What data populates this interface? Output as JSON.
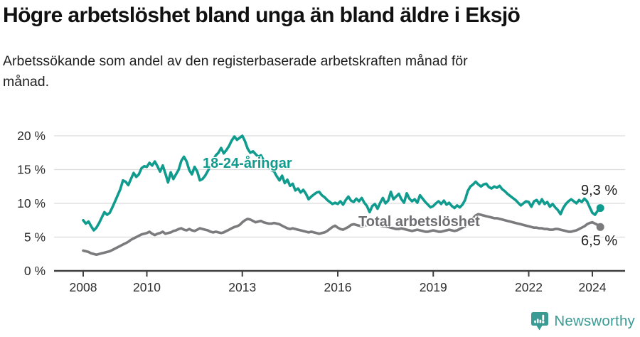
{
  "header": {
    "title": "Högre arbetslöshet bland unga än bland äldre i Eksjö",
    "subtitle": "Arbetssökande som andel av den registerbaserade arbetskraften månad för månad."
  },
  "chart_data": {
    "type": "line",
    "title": "Högre arbetslöshet bland unga än bland äldre i Eksjö",
    "subtitle": "Arbetssökande som andel av den registerbaserade arbetskraften månad för månad.",
    "unit": "%",
    "grid": true,
    "x_start_year": 2008,
    "x_frequency": "monthly",
    "x_axis": {
      "ticks": [
        {
          "year": 2008,
          "label": "2008"
        },
        {
          "year": 2010,
          "label": "2010"
        },
        {
          "year": 2013,
          "label": "2013"
        },
        {
          "year": 2016,
          "label": "2016"
        },
        {
          "year": 2019,
          "label": "2019"
        },
        {
          "year": 2022,
          "label": "2022"
        },
        {
          "year": 2024,
          "label": "2024"
        }
      ]
    },
    "y_axis": {
      "min": 0,
      "max": 20,
      "ticks": [
        {
          "value": 0,
          "label": "0 %"
        },
        {
          "value": 5,
          "label": "5 %"
        },
        {
          "value": 10,
          "label": "10 %"
        },
        {
          "value": 15,
          "label": "15 %"
        },
        {
          "value": 20,
          "label": "20 %"
        }
      ]
    },
    "series": [
      {
        "id": "young",
        "name": "18-24-åringar",
        "color": "#0f9b8e",
        "end_value": 9.3,
        "end_label": "9,3 %",
        "values": [
          7.5,
          7.0,
          7.3,
          6.6,
          6.0,
          6.4,
          7.1,
          7.9,
          8.7,
          8.3,
          8.6,
          9.4,
          10.3,
          11.2,
          12.1,
          13.4,
          13.2,
          12.7,
          13.6,
          14.5,
          13.9,
          14.3,
          15.2,
          15.5,
          15.4,
          16.0,
          15.6,
          16.2,
          15.5,
          14.7,
          15.6,
          14.4,
          13.1,
          14.6,
          13.6,
          14.3,
          15.0,
          16.3,
          16.9,
          16.2,
          14.9,
          14.3,
          15.4,
          14.7,
          13.4,
          13.6,
          14.1,
          14.8,
          15.6,
          16.4,
          17.1,
          17.5,
          18.2,
          17.4,
          17.9,
          18.5,
          19.3,
          19.9,
          19.4,
          19.7,
          20.0,
          19.2,
          18.1,
          17.5,
          17.7,
          17.3,
          16.9,
          17.1,
          16.4,
          15.9,
          15.4,
          14.9,
          14.7,
          14.0,
          13.4,
          14.1,
          13.0,
          13.5,
          12.6,
          12.9,
          11.9,
          12.2,
          11.6,
          12.0,
          11.4,
          10.6,
          11.0,
          11.3,
          11.6,
          11.7,
          11.2,
          10.9,
          10.5,
          10.2,
          9.9,
          10.1,
          9.9,
          10.3,
          9.8,
          10.5,
          11.0,
          10.4,
          10.2,
          10.7,
          10.3,
          10.8,
          10.1,
          9.6,
          8.7,
          9.6,
          9.9,
          9.2,
          10.1,
          10.8,
          10.0,
          10.4,
          11.7,
          10.6,
          11.0,
          11.4,
          10.6,
          10.1,
          11.5,
          10.7,
          10.3,
          10.6,
          10.1,
          11.2,
          10.7,
          10.2,
          9.8,
          9.4,
          9.6,
          10.0,
          10.3,
          9.9,
          10.4,
          9.8,
          10.1,
          9.6,
          9.3,
          9.7,
          9.4,
          9.8,
          10.5,
          11.8,
          12.5,
          12.8,
          13.2,
          12.8,
          12.5,
          12.8,
          12.9,
          12.4,
          12.2,
          12.5,
          12.3,
          12.6,
          12.1,
          11.8,
          11.4,
          11.1,
          10.8,
          10.5,
          10.1,
          9.7,
          10.0,
          10.3,
          10.2,
          9.5,
          10.3,
          10.5,
          9.9,
          10.6,
          9.9,
          10.2,
          9.5,
          9.9,
          9.4,
          9.0,
          8.4,
          9.3,
          9.9,
          10.3,
          10.6,
          10.3,
          10.0,
          10.5,
          10.2,
          10.7,
          10.3,
          9.4,
          8.6,
          8.3,
          8.9,
          9.3
        ]
      },
      {
        "id": "total",
        "name": "Total arbetslöshet",
        "color": "#7b7b7e",
        "end_value": 6.5,
        "end_label": "6,5 %",
        "values": [
          3.0,
          2.9,
          2.8,
          2.6,
          2.5,
          2.4,
          2.5,
          2.6,
          2.7,
          2.8,
          2.9,
          3.1,
          3.3,
          3.5,
          3.7,
          3.9,
          4.1,
          4.3,
          4.6,
          4.8,
          5.0,
          5.2,
          5.4,
          5.5,
          5.6,
          5.8,
          5.5,
          5.3,
          5.5,
          5.6,
          5.8,
          5.5,
          5.6,
          5.7,
          5.9,
          6.0,
          6.2,
          6.3,
          6.1,
          6.0,
          6.2,
          6.0,
          5.9,
          6.1,
          6.3,
          6.2,
          6.1,
          6.0,
          5.8,
          5.7,
          5.8,
          5.7,
          5.6,
          5.7,
          5.9,
          6.1,
          6.3,
          6.5,
          6.6,
          6.8,
          7.2,
          7.5,
          7.7,
          7.6,
          7.4,
          7.2,
          7.3,
          7.4,
          7.2,
          7.1,
          7.0,
          7.0,
          7.1,
          7.0,
          6.9,
          6.7,
          6.5,
          6.3,
          6.2,
          6.3,
          6.2,
          6.1,
          6.0,
          5.9,
          5.8,
          5.7,
          5.8,
          5.7,
          5.6,
          5.5,
          5.6,
          5.7,
          5.9,
          6.2,
          6.5,
          6.7,
          6.4,
          6.2,
          6.1,
          6.3,
          6.5,
          6.8,
          6.9,
          6.8,
          6.7,
          6.6,
          6.7,
          6.8,
          6.9,
          7.0,
          6.9,
          6.8,
          6.7,
          6.6,
          6.6,
          6.5,
          6.4,
          6.3,
          6.2,
          6.2,
          6.3,
          6.2,
          6.1,
          6.0,
          5.9,
          6.0,
          6.1,
          6.0,
          5.9,
          5.8,
          5.8,
          5.9,
          6.0,
          5.9,
          5.8,
          5.8,
          5.9,
          6.0,
          6.1,
          6.0,
          5.9,
          6.0,
          6.2,
          6.4,
          6.6,
          6.8,
          7.2,
          7.8,
          8.2,
          8.4,
          8.3,
          8.2,
          8.1,
          8.0,
          7.9,
          7.8,
          7.8,
          7.7,
          7.6,
          7.5,
          7.4,
          7.3,
          7.2,
          7.1,
          7.0,
          6.9,
          6.8,
          6.7,
          6.6,
          6.5,
          6.4,
          6.4,
          6.3,
          6.3,
          6.2,
          6.2,
          6.1,
          6.1,
          6.2,
          6.2,
          6.1,
          6.0,
          5.9,
          5.8,
          5.8,
          5.9,
          6.0,
          6.2,
          6.4,
          6.6,
          6.9,
          7.1,
          7.2,
          7.0,
          6.8,
          6.5
        ]
      }
    ]
  },
  "footer": {
    "brand": "Newsworthy"
  },
  "colors": {
    "accent_teal": "#0f9b8e",
    "line_gray": "#7b7b7e",
    "brand_teal": "#3a9a94"
  }
}
